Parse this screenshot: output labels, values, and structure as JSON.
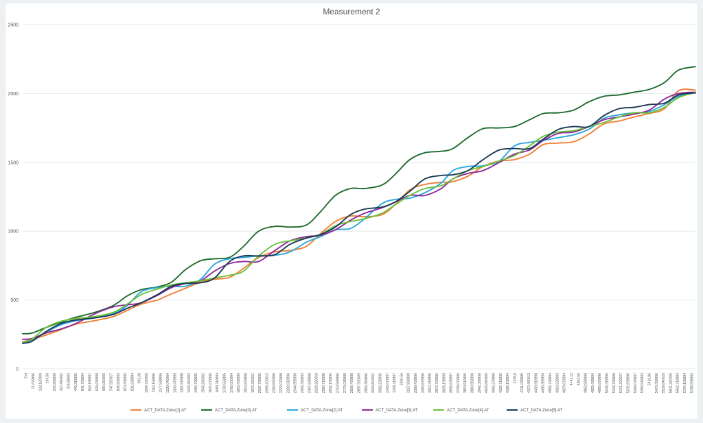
{
  "chart_data": {
    "type": "line",
    "title": "Measurement 2",
    "xlabel": "",
    "ylabel": "",
    "ylim": [
      0,
      2500
    ],
    "y_ticks": [
      0,
      500,
      1000,
      1500,
      2000,
      2500
    ],
    "grid": "horizontal",
    "legend_position": "bottom",
    "x_tick_labels": [
      "Zeit",
      "71,679996",
      "133,120009",
      "194,56",
      "255,999999",
      "317,440002",
      "378,88002",
      "440,319996",
      "501,759994",
      "563,199997",
      "624,639998",
      "686,080006",
      "747,520017",
      "808,959993",
      "870,399995",
      "931,839994",
      "993,28",
      "1054,720005",
      "1116,159996",
      "1177,599996",
      "1239,040004",
      "1300,479999",
      "1361,919998",
      "1423,360003",
      "1484,799995",
      "1546,240002",
      "1607,679996",
      "1669,119994",
      "1730,559995",
      "1792,000004",
      "1853,439995",
      "1914,879998",
      "1976,320001",
      "2037,759996",
      "2099,200012",
      "2160,640006",
      "2222,079998",
      "2283,519996",
      "2344,959998",
      "2406,399993",
      "2467,839998",
      "2529,280019",
      "2590,719998",
      "2652,159996",
      "2713,599996",
      "2775,039998",
      "2836,479995",
      "2897,920005",
      "2959,359996",
      "3020,800001",
      "3082,239995",
      "3143,679997",
      "3205,119997",
      "3266,56",
      "3327,999999",
      "3389,439996",
      "3450,879996",
      "3512,319996",
      "3573,759996",
      "3635,199999",
      "3696,639997",
      "3758,079996",
      "3819,519996",
      "3880,959998",
      "3942,399998",
      "4003,840005",
      "4065,279999",
      "4126,719996",
      "4188,159994",
      "4249,6",
      "4311,039995",
      "4372,480013",
      "4433,919998",
      "4495,359994",
      "4556,799994",
      "4618,239993",
      "4679,679994",
      "4741,12",
      "4802,56",
      "4863,999999",
      "4925,439994",
      "4986,879996",
      "5048,319996",
      "5109,759998",
      "5171,200027",
      "5232,639996",
      "5294,079997",
      "5355,519993",
      "5416,96",
      "5478,399996",
      "5539,840025",
      "5601,280006",
      "5662,719994",
      "5724,159994",
      "5785,599993"
    ],
    "x_range": [
      0,
      5786
    ],
    "series": [
      {
        "name": "ACT_DATA.Zone[1].AT",
        "color": "#f07f35",
        "x": [
          0,
          80,
          200,
          330,
          460,
          620,
          780,
          900,
          1020,
          1160,
          1240,
          1400,
          1530,
          1650,
          1780,
          1900,
          2030,
          2170,
          2300,
          2440,
          2560,
          2690,
          2820,
          2940,
          3090,
          3200,
          3330,
          3460,
          3600,
          3700,
          3830,
          3960,
          4100,
          4230,
          4360,
          4480,
          4610,
          4740,
          4870,
          5000,
          5130,
          5260,
          5390,
          5520,
          5640,
          5786
        ],
        "y": [
          195,
          215,
          245,
          285,
          325,
          350,
          380,
          425,
          470,
          500,
          530,
          585,
          630,
          650,
          665,
          730,
          810,
          850,
          860,
          890,
          980,
          1070,
          1110,
          1105,
          1120,
          1190,
          1300,
          1340,
          1355,
          1360,
          1400,
          1470,
          1510,
          1520,
          1560,
          1630,
          1640,
          1650,
          1705,
          1780,
          1800,
          1830,
          1855,
          1890,
          2020,
          2025
        ]
      },
      {
        "name": "ACT_DATA.Zone[0].AT",
        "color": "#1e6b2e",
        "x": [
          0,
          80,
          200,
          330,
          460,
          620,
          780,
          900,
          1020,
          1160,
          1280,
          1400,
          1530,
          1650,
          1780,
          1900,
          2030,
          2170,
          2300,
          2440,
          2560,
          2690,
          2820,
          2940,
          3090,
          3200,
          3330,
          3460,
          3600,
          3700,
          3830,
          3960,
          4100,
          4230,
          4360,
          4480,
          4610,
          4740,
          4870,
          5000,
          5130,
          5260,
          5390,
          5520,
          5640,
          5786
        ],
        "y": [
          255,
          260,
          300,
          340,
          375,
          410,
          460,
          530,
          575,
          595,
          630,
          720,
          785,
          800,
          810,
          890,
          1000,
          1035,
          1030,
          1045,
          1140,
          1260,
          1310,
          1310,
          1335,
          1410,
          1520,
          1570,
          1580,
          1600,
          1680,
          1745,
          1750,
          1760,
          1810,
          1855,
          1860,
          1880,
          1940,
          1980,
          1990,
          2010,
          2030,
          2080,
          2170,
          2195
        ]
      },
      {
        "name": "ACT_DATA.Zone[2].AT",
        "color": "#2ba6de",
        "x": [
          0,
          80,
          200,
          330,
          460,
          620,
          780,
          900,
          1020,
          1160,
          1280,
          1400,
          1530,
          1650,
          1780,
          1900,
          2030,
          2170,
          2300,
          2440,
          2560,
          2690,
          2820,
          2940,
          3090,
          3200,
          3330,
          3460,
          3600,
          3700,
          3830,
          3960,
          4100,
          4230,
          4360,
          4480,
          4610,
          4740,
          4870,
          5000,
          5130,
          5260,
          5390,
          5520,
          5640,
          5786
        ],
        "y": [
          195,
          205,
          265,
          320,
          350,
          370,
          400,
          460,
          560,
          590,
          600,
          600,
          650,
          760,
          800,
          810,
          820,
          825,
          850,
          920,
          960,
          1010,
          1020,
          1090,
          1200,
          1230,
          1240,
          1280,
          1350,
          1440,
          1470,
          1475,
          1510,
          1620,
          1645,
          1660,
          1680,
          1700,
          1740,
          1820,
          1845,
          1860,
          1870,
          1920,
          1980,
          2005
        ]
      },
      {
        "name": "ACT_DATA.Zone[3].AT",
        "color": "#8e2a9a",
        "x": [
          0,
          80,
          200,
          330,
          460,
          620,
          780,
          900,
          1020,
          1160,
          1280,
          1400,
          1530,
          1650,
          1780,
          1900,
          2030,
          2170,
          2300,
          2440,
          2560,
          2690,
          2820,
          2940,
          3090,
          3200,
          3330,
          3460,
          3600,
          3700,
          3830,
          3960,
          4100,
          4230,
          4360,
          4480,
          4610,
          4740,
          4870,
          5000,
          5130,
          5260,
          5390,
          5520,
          5640,
          5786
        ],
        "y": [
          215,
          220,
          260,
          290,
          330,
          400,
          450,
          465,
          480,
          535,
          590,
          620,
          640,
          710,
          765,
          780,
          780,
          860,
          930,
          960,
          970,
          1010,
          1080,
          1130,
          1170,
          1210,
          1260,
          1260,
          1310,
          1380,
          1420,
          1440,
          1500,
          1560,
          1590,
          1660,
          1710,
          1720,
          1760,
          1810,
          1830,
          1850,
          1880,
          1960,
          2000,
          2010
        ]
      },
      {
        "name": "ACT_DATA.Zone[4].AT",
        "color": "#6dbf3a",
        "x": [
          0,
          80,
          200,
          330,
          460,
          620,
          780,
          900,
          1020,
          1160,
          1280,
          1400,
          1530,
          1650,
          1780,
          1900,
          2030,
          2170,
          2300,
          2440,
          2560,
          2690,
          2820,
          2940,
          3090,
          3200,
          3330,
          3460,
          3600,
          3700,
          3830,
          3960,
          4100,
          4230,
          4360,
          4480,
          4610,
          4740,
          4870,
          5000,
          5130,
          5260,
          5390,
          5520,
          5640,
          5786
        ],
        "y": [
          190,
          215,
          300,
          345,
          365,
          380,
          410,
          470,
          540,
          580,
          610,
          625,
          640,
          660,
          680,
          710,
          820,
          905,
          930,
          950,
          975,
          1040,
          1070,
          1090,
          1130,
          1190,
          1260,
          1310,
          1330,
          1380,
          1440,
          1470,
          1510,
          1550,
          1620,
          1690,
          1720,
          1730,
          1760,
          1790,
          1830,
          1860,
          1860,
          1900,
          1970,
          2010
        ]
      },
      {
        "name": "ACT_DATA.Zone[5].AT",
        "color": "#1b3a56",
        "x": [
          0,
          80,
          200,
          330,
          460,
          620,
          780,
          900,
          1020,
          1160,
          1280,
          1400,
          1530,
          1650,
          1780,
          1900,
          2030,
          2170,
          2300,
          2440,
          2560,
          2690,
          2820,
          2940,
          3090,
          3200,
          3330,
          3460,
          3600,
          3700,
          3830,
          3960,
          4100,
          4230,
          4360,
          4480,
          4610,
          4740,
          4870,
          5000,
          5130,
          5260,
          5390,
          5520,
          5640,
          5786
        ],
        "y": [
          185,
          200,
          270,
          330,
          355,
          370,
          395,
          440,
          480,
          540,
          600,
          620,
          625,
          660,
          780,
          820,
          820,
          830,
          905,
          950,
          975,
          1030,
          1120,
          1160,
          1175,
          1210,
          1290,
          1380,
          1405,
          1410,
          1440,
          1520,
          1590,
          1600,
          1600,
          1670,
          1740,
          1760,
          1760,
          1840,
          1890,
          1900,
          1920,
          1930,
          1990,
          2005
        ]
      }
    ]
  }
}
